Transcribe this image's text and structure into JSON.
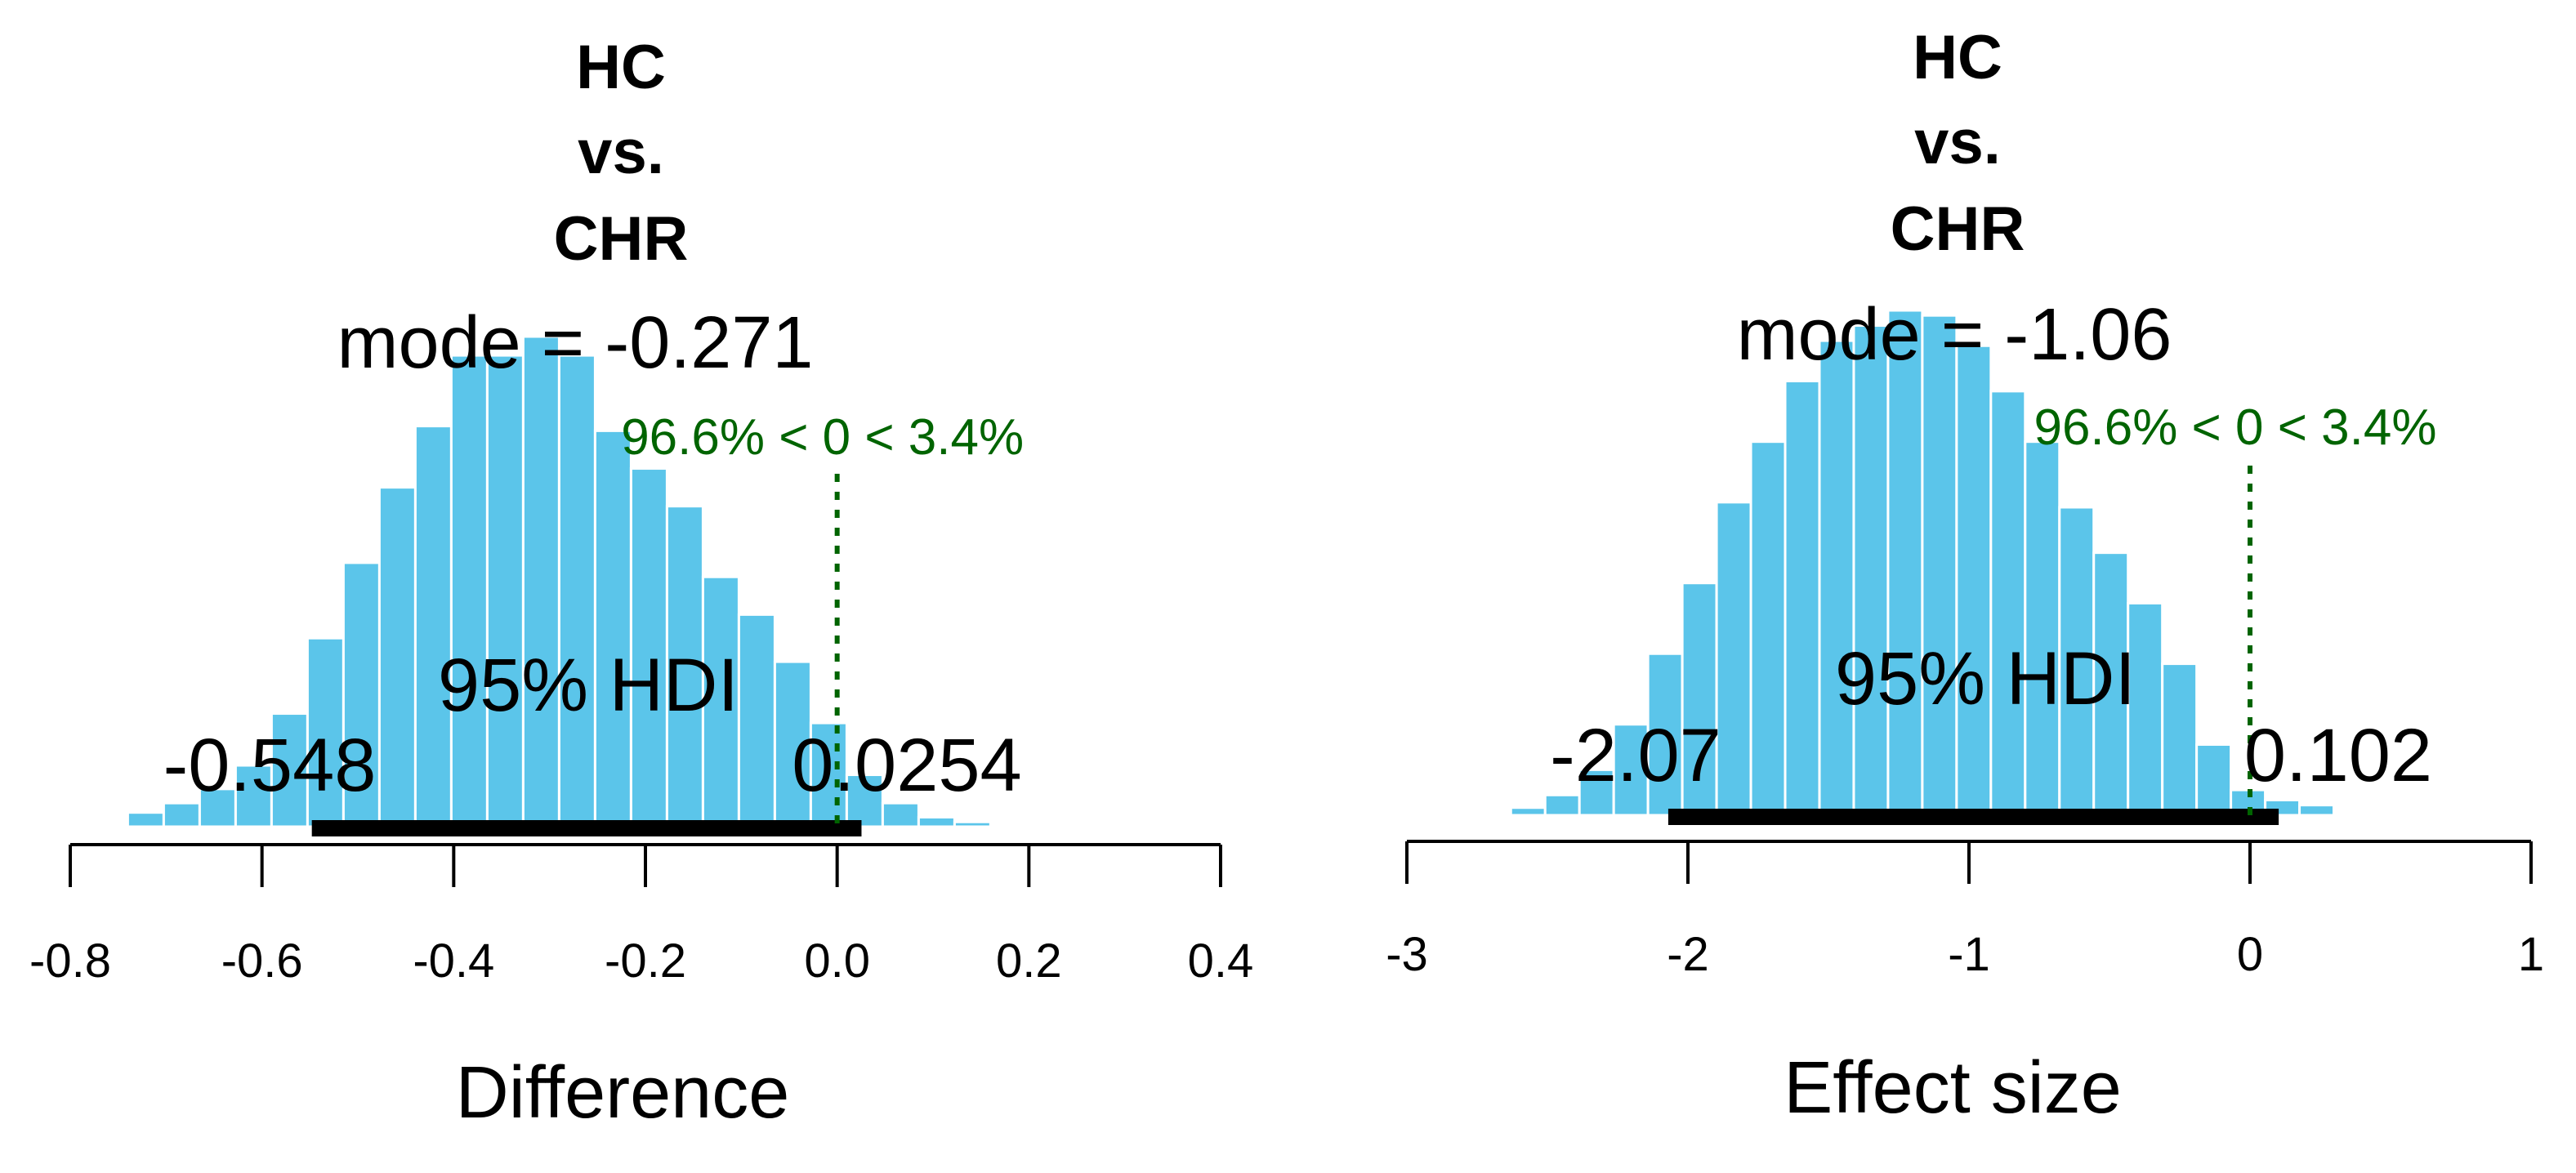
{
  "chart_data": [
    {
      "type": "bar",
      "title_lines": [
        "HC",
        "vs.",
        "CHR"
      ],
      "mode_label": "mode = -0.271",
      "hdi_label": "95% HDI",
      "hdi_low_label": "-0.548",
      "hdi_high_label": "0.0254",
      "hdi": [
        -0.548,
        0.0254
      ],
      "comp_label": "96.6% < 0 < 3.4%",
      "comp_value": 0,
      "xlabel": "Difference",
      "xlim": [
        -0.8,
        0.4
      ],
      "xticks": [
        -0.8,
        -0.6,
        -0.4,
        -0.2,
        0.0,
        0.2,
        0.4
      ],
      "xtick_labels": [
        "-0.8",
        "-0.6",
        "-0.4",
        "-0.2",
        "0.0",
        "0.2",
        "0.4"
      ],
      "bin_start": -0.74,
      "bin_width": 0.0375,
      "density": [
        0.03,
        0.05,
        0.08,
        0.13,
        0.24,
        0.4,
        0.56,
        0.72,
        0.85,
        1.0,
        1.0,
        1.04,
        1.0,
        0.84,
        0.76,
        0.68,
        0.53,
        0.45,
        0.35,
        0.22,
        0.11,
        0.05,
        0.02,
        0.01,
        0.005,
        0.005
      ]
    },
    {
      "type": "bar",
      "title_lines": [
        "HC",
        "vs.",
        "CHR"
      ],
      "mode_label": "mode = -1.06",
      "hdi_label": "95% HDI",
      "hdi_low_label": "-2.07",
      "hdi_high_label": "0.102",
      "hdi": [
        -2.07,
        0.102
      ],
      "comp_label": "96.6% < 0 < 3.4%",
      "comp_value": 0,
      "xlabel": "Effect size",
      "xlim": [
        -3,
        1
      ],
      "xticks": [
        -3,
        -2,
        -1,
        0,
        1
      ],
      "xtick_labels": [
        "-3",
        "-2",
        "-1",
        "0",
        "1"
      ],
      "bin_start": -2.63,
      "bin_width": 0.122,
      "density": [
        0.015,
        0.04,
        0.09,
        0.18,
        0.32,
        0.46,
        0.62,
        0.74,
        0.86,
        0.94,
        0.97,
        1.0,
        0.99,
        0.93,
        0.84,
        0.74,
        0.61,
        0.52,
        0.42,
        0.3,
        0.14,
        0.05,
        0.03,
        0.02
      ]
    }
  ]
}
